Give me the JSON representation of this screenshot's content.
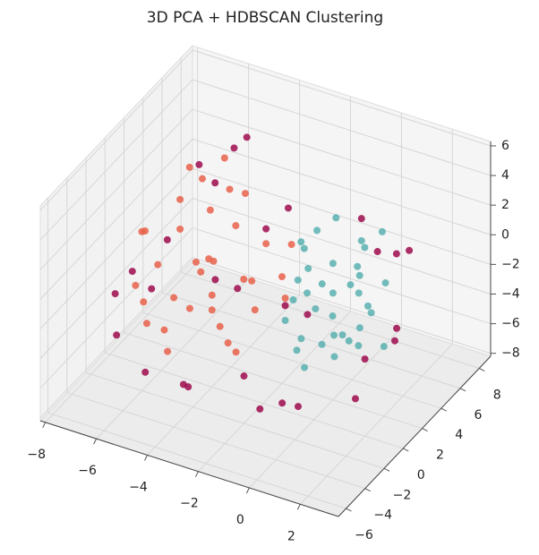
{
  "chart_data": {
    "type": "scatter3d",
    "title": "3D PCA + HDBSCAN Clustering",
    "xlim": [
      -8.2,
      3.5
    ],
    "ylim": [
      -6.8,
      9.2
    ],
    "zlim": [
      -8.2,
      6.3
    ],
    "xticks": [
      {
        "value": -8,
        "label": "−8"
      },
      {
        "value": -6,
        "label": "−6"
      },
      {
        "value": -4,
        "label": "−4"
      },
      {
        "value": -2,
        "label": "−2"
      },
      0,
      2
    ],
    "yticks": [
      {
        "value": -6,
        "label": "−6"
      },
      {
        "value": -4,
        "label": "−4"
      },
      {
        "value": -2,
        "label": "−2"
      },
      0,
      2,
      4,
      6,
      8
    ],
    "zticks": [
      {
        "value": -8,
        "label": "−8"
      },
      {
        "value": -6,
        "label": "−6"
      },
      {
        "value": -4,
        "label": "−4"
      },
      {
        "value": -2,
        "label": "−2"
      },
      0,
      2,
      4,
      6
    ],
    "grid": true,
    "series": [
      {
        "color": "#e8624a",
        "x": [
          -5,
          -6,
          -4,
          -3,
          -7,
          -5.5,
          -4.5,
          -2,
          -6.5,
          -3.5,
          -5,
          -4,
          -6,
          -2.5,
          -7.5,
          -5,
          -3,
          -4.5,
          -5.5,
          -6,
          -4,
          -1.5,
          -3,
          -5,
          -6.5,
          -4.5,
          -2,
          -5.5,
          -7,
          -3.5,
          -4,
          -6,
          -5,
          -2.5,
          -4.8
        ],
        "y": [
          1,
          2,
          0,
          1.5,
          0,
          3,
          -1,
          2,
          1,
          -0.5,
          4,
          2.5,
          -1.5,
          0.5,
          2,
          -2,
          3,
          1,
          0,
          2,
          3.5,
          1,
          -1,
          2.5,
          -0.5,
          1.5,
          3,
          -1,
          1,
          2,
          0,
          3,
          1.5,
          -1.5,
          4
        ],
        "z": [
          -1,
          0,
          -2,
          -1.5,
          -3,
          3,
          -2.5,
          -1,
          -2,
          -3.5,
          4,
          1,
          -4,
          -2.5,
          -1,
          -5,
          0,
          -0.5,
          -3,
          2,
          2.5,
          -1.5,
          -4,
          1.5,
          -3.5,
          -1,
          0.5,
          -4.5,
          0,
          -2,
          -3,
          3.5,
          -2,
          -4,
          2
        ]
      },
      {
        "color": "#5ab0b0",
        "x": [
          0,
          -1,
          1,
          0.5,
          -0.5,
          1.5,
          -1.5,
          0,
          1,
          -1,
          0.5,
          -0.5,
          2,
          -2,
          0,
          1,
          -1,
          0.5,
          1.5,
          -1.5,
          0,
          -0.8,
          0.8,
          1.2,
          -1.2,
          0.3,
          -0.3,
          0,
          1,
          -1,
          0.6,
          -0.6,
          1.8,
          -0.2,
          0.4
        ],
        "y": [
          2,
          1,
          3,
          4,
          0,
          2,
          3,
          -1,
          1,
          5,
          2.5,
          1.5,
          2,
          4,
          3,
          4.5,
          0.5,
          -0.5,
          3.5,
          1,
          2,
          3,
          0,
          1.5,
          2.5,
          4,
          -1,
          5,
          2,
          3,
          0.5,
          1,
          0,
          2.5,
          3.5
        ],
        "z": [
          -1,
          0,
          -2,
          1,
          -3,
          -1.5,
          0.5,
          -4,
          -3,
          1.5,
          -0.5,
          -2,
          -3.5,
          0,
          -4.5,
          2,
          -1,
          -2.5,
          -0.5,
          -3,
          1,
          -1.5,
          -3.5,
          0,
          -2,
          -1,
          -3,
          0.5,
          -4,
          2,
          -2.5,
          1,
          -1,
          -3,
          0
        ]
      },
      {
        "color": "#9e0a4e",
        "x": [
          -7.8,
          -7,
          -6,
          -5,
          -4,
          -3,
          -2,
          -1,
          0,
          1,
          2,
          2.5,
          -6.5,
          -5.5,
          -3.5,
          -1.5,
          0.5,
          1.5,
          -7.5,
          -4.5,
          -2.5,
          -0.5,
          2,
          -6,
          -3,
          1,
          -5,
          -1,
          2.8,
          -4
        ],
        "y": [
          0,
          -2,
          4,
          5,
          -3,
          3,
          -2,
          -3,
          5,
          4,
          0,
          2,
          2,
          -3,
          -1,
          1,
          -3,
          6,
          1,
          5,
          4,
          -2,
          -1,
          -1,
          0,
          6,
          3,
          2,
          1,
          -2.5
        ],
        "z": [
          -4,
          -5,
          3,
          4,
          -6,
          1,
          -5,
          -6,
          2,
          1,
          -3,
          -2,
          -1,
          -6,
          0,
          -2,
          -5,
          0,
          -3,
          5,
          2,
          -6,
          -5,
          -2,
          -1,
          -0.5,
          3,
          -3,
          -2,
          -6.5
        ]
      }
    ]
  }
}
